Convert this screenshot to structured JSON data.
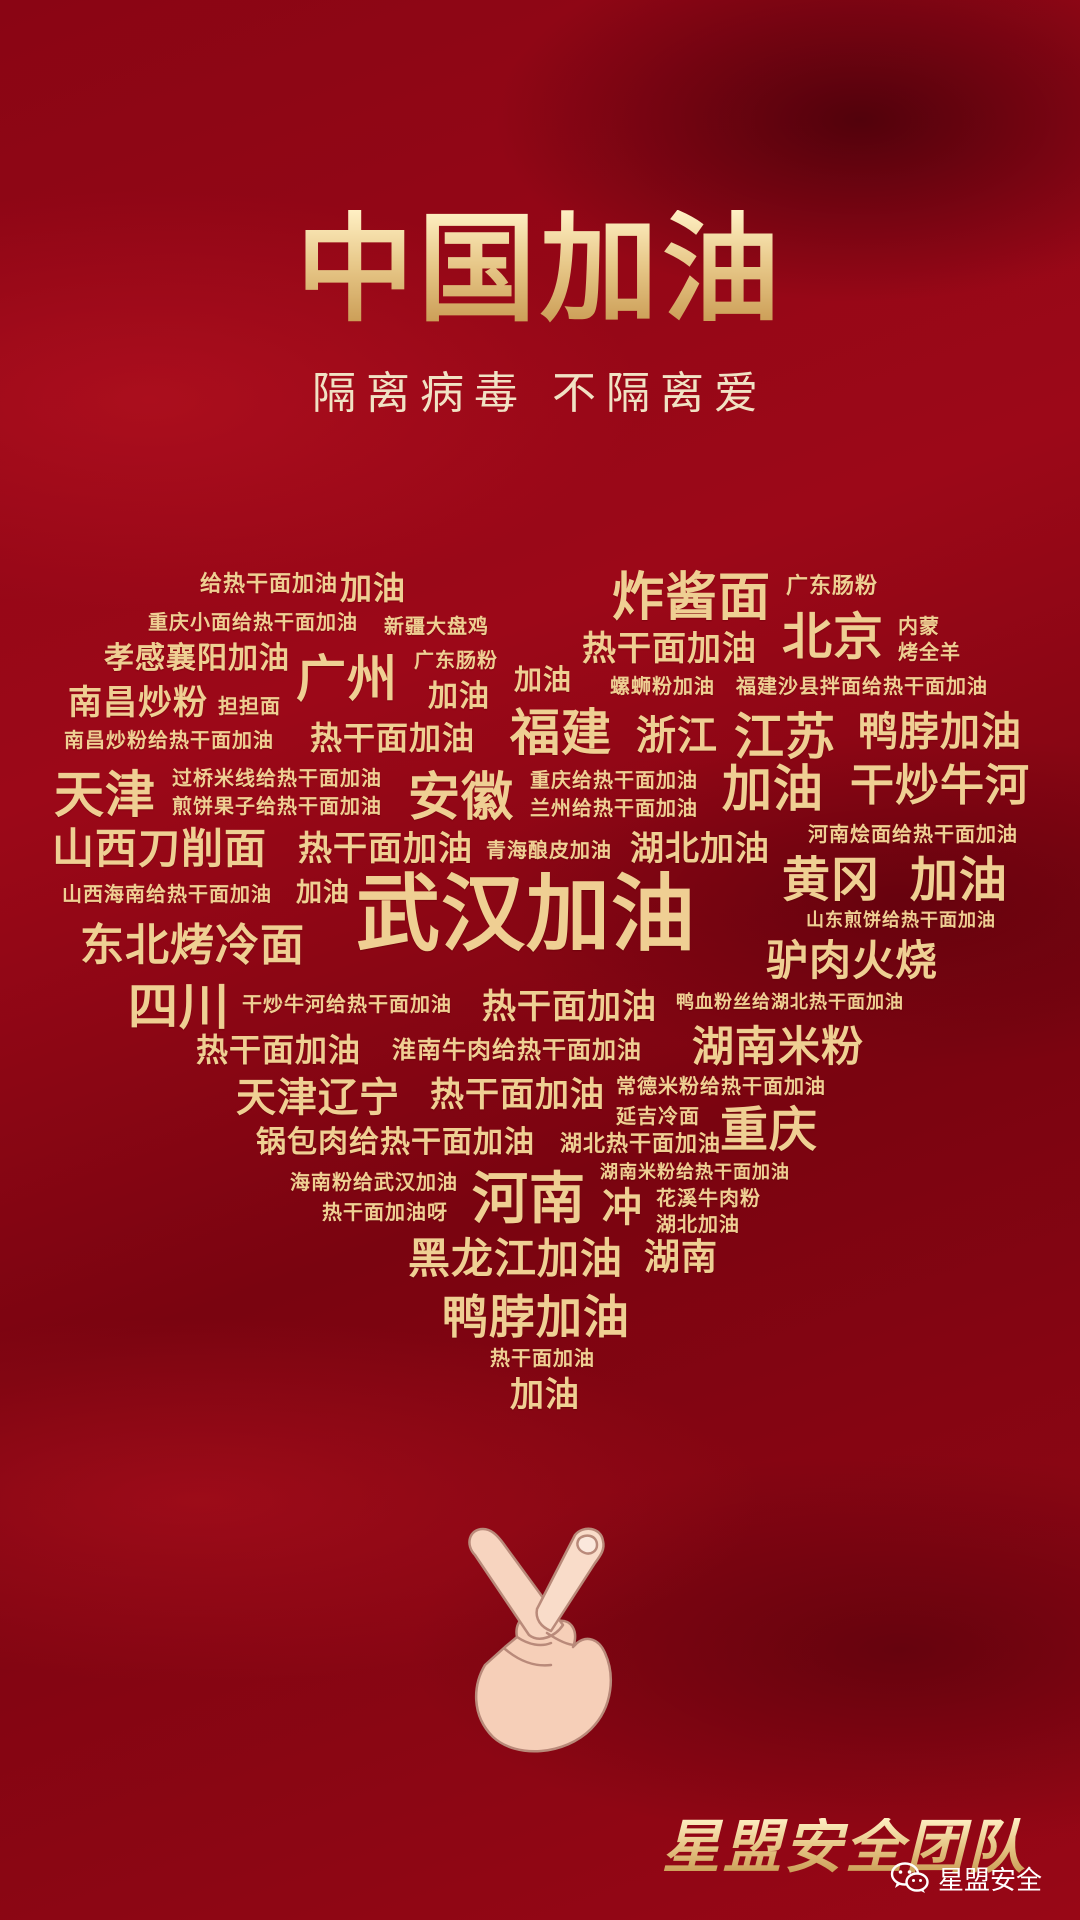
{
  "poster": {
    "title": "中国加油",
    "subtitle": "隔离病毒  不隔离爱",
    "team_name": "星盟安全团队",
    "watermark": "星盟安全"
  },
  "colors": {
    "background": "#8f0614",
    "gold": "#efcf93"
  },
  "icons": {
    "hand": "finger-heart-hand-icon",
    "watermark": "wechat-icon"
  },
  "word_cloud": [
    "给热干面加油",
    "加油",
    "炸酱面",
    "广东肠粉",
    "重庆小面给热干面加油",
    "新疆大盘鸡",
    "北京",
    "内蒙",
    "烤全羊",
    "孝感襄阳加油",
    "热干面加油",
    "广州",
    "广东肠粉",
    "南昌炒粉",
    "担担面",
    "加油",
    "加油",
    "螺蛳粉加油",
    "福建沙县拌面给热干面加油",
    "南昌炒粉给热干面加油",
    "热干面加油",
    "福建",
    "浙江",
    "江苏",
    "鸭脖加油",
    "天津",
    "过桥米线给热干面加油",
    "煎饼果子给热干面加油",
    "安徽",
    "重庆给热干面加油",
    "兰州给热干面加油",
    "加油",
    "干炒牛河",
    "山西刀削面",
    "热干面加油",
    "青海酿皮加油",
    "湖北加油",
    "河南烩面给热干面加油",
    "山西海南给热干面加油",
    "加油",
    "武汉加油",
    "黄冈",
    "加油",
    "山东煎饼给热干面加油",
    "东北烤冷面",
    "驴肉火烧",
    "四川",
    "干炒牛河给热干面加油",
    "热干面加油",
    "鸭血粉丝给湖北热干面加油",
    "热干面加油",
    "淮南牛肉给热干面加油",
    "湖南米粉",
    "天津辽宁",
    "热干面加油",
    "常德米粉给热干面加油",
    "延吉冷面",
    "重庆",
    "锅包肉给热干面加油",
    "湖北热干面加油",
    "海南粉给武汉加油",
    "湖南米粉给热干面加油",
    "河南",
    "冲",
    "花溪牛肉粉",
    "热干面加油呀",
    "湖北加油",
    "黑龙江加油",
    "湖南",
    "鸭脖加油",
    "热干面加油",
    "加油"
  ]
}
